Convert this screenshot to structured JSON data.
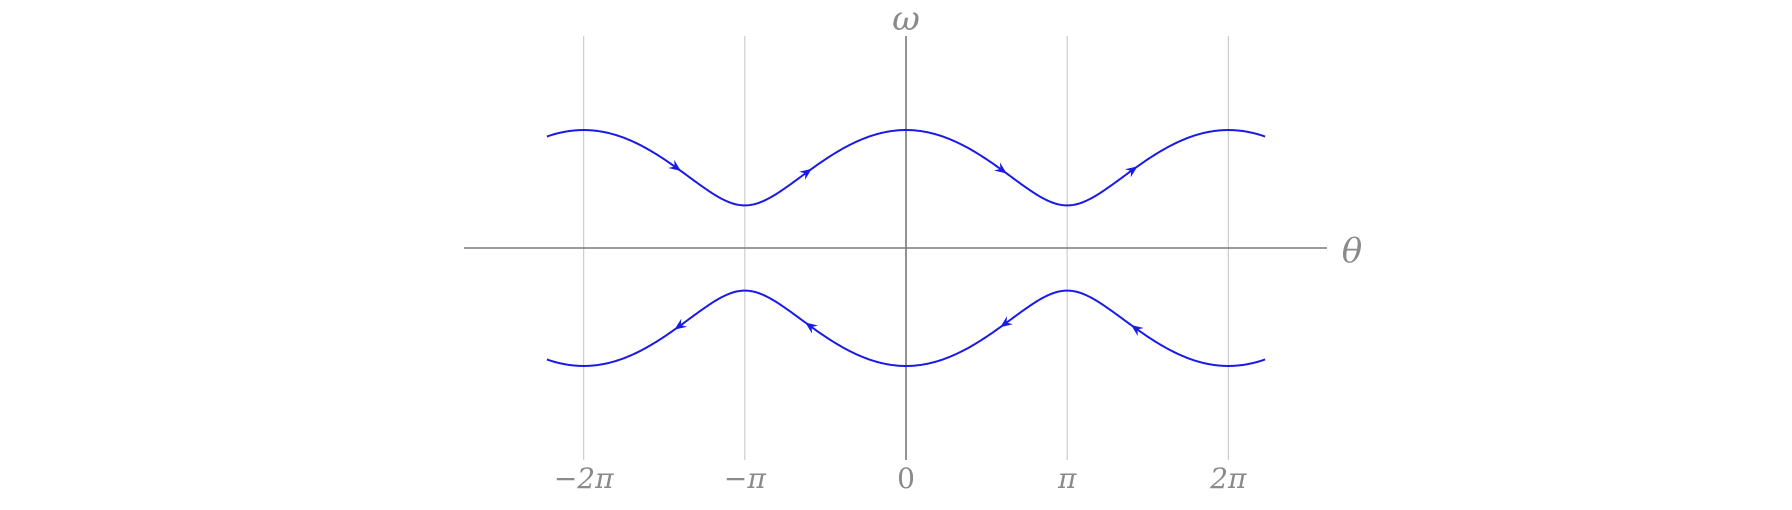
{
  "chart_data": {
    "type": "line",
    "title": "",
    "xlabel": "θ",
    "ylabel": "ω",
    "xlim": [
      -7.3,
      7.3
    ],
    "ylim": [
      -3.6,
      3.6
    ],
    "x_ticks": [
      {
        "value": -6.2832,
        "label": "−2π"
      },
      {
        "value": -3.1416,
        "label": "−π"
      },
      {
        "value": 0,
        "label": "0"
      },
      {
        "value": 3.1416,
        "label": "π"
      },
      {
        "value": 6.2832,
        "label": "2π"
      }
    ],
    "grid": true,
    "x_range": [
      -7.0,
      7.0
    ],
    "series": [
      {
        "branch": "upper",
        "color": "#1a1ae6",
        "equation": "ω = √(2(E + cos θ))",
        "E": 1.3,
        "arrow_direction": "left-to-right",
        "arrows_at_x": [
          -4.45,
          -1.9,
          1.9,
          4.45
        ]
      },
      {
        "branch": "lower",
        "color": "#1a1ae6",
        "equation": "ω = −√(2(E + cos θ))",
        "E": 1.3,
        "arrow_direction": "right-to-left",
        "arrows_at_x": [
          4.45,
          1.9,
          -1.9,
          -4.45
        ]
      }
    ],
    "axis_color": "#7a7a7a",
    "grid_color": "#c8c8c8"
  }
}
